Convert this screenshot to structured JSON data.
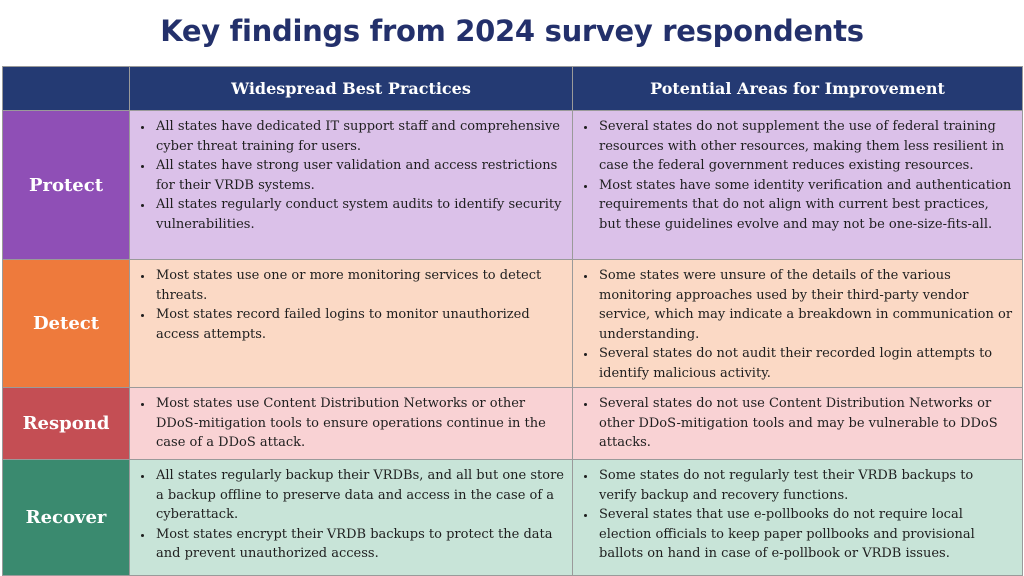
{
  "title": "Key findings from 2024 survey respondents",
  "columns": {
    "best": "Widespread Best Practices",
    "improve": "Potential Areas for Improvement"
  },
  "colors": {
    "title": "#23306b",
    "header": "#243a73",
    "protect": "#8f4fb6",
    "detect": "#ee7a3c",
    "respond": "#c44e54",
    "recover": "#3a8a6f"
  },
  "rows": [
    {
      "category": "Protect",
      "best": [
        "All states have dedicated IT support staff and comprehensive cyber threat training for users.",
        "All states have strong user validation and access restrictions for their VRDB systems.",
        "All states regularly conduct system audits to identify security vulnerabilities."
      ],
      "improve": [
        "Several states do not supplement the use of federal training resources with other resources, making them less resilient in case the federal government reduces existing resources.",
        "Most states have some identity verification and authentication requirements that do not align with current best practices, but these guidelines evolve and may not be one-size-fits-all."
      ]
    },
    {
      "category": "Detect",
      "best": [
        "Most states use one or more monitoring services to detect threats.",
        "Most states record failed logins to monitor unauthorized access attempts."
      ],
      "improve": [
        "Some states were unsure of the details of the various monitoring approaches used by their third-party vendor service, which may indicate a breakdown in communication or understanding.",
        "Several states do not audit their recorded login attempts to identify malicious activity."
      ]
    },
    {
      "category": "Respond",
      "best": [
        "Most states use Content Distribution Networks or other DDoS-mitigation tools to ensure operations continue in the case of a DDoS attack."
      ],
      "improve": [
        "Several states do not use Content Distribution Networks or other DDoS-mitigation tools and may be vulnerable to DDoS attacks."
      ]
    },
    {
      "category": "Recover",
      "best": [
        "All states regularly backup their VRDBs, and all but one store a backup offline to preserve data and access in the case of a cyberattack.",
        "Most states encrypt their VRDB backups to protect the data and prevent unauthorized access."
      ],
      "improve": [
        "Some states do not regularly test their VRDB backups to verify backup and recovery functions.",
        "Several states that use e-pollbooks do not require local election officials to keep paper pollbooks and provisional ballots on hand in case of e-pollbook or VRDB issues."
      ]
    }
  ]
}
